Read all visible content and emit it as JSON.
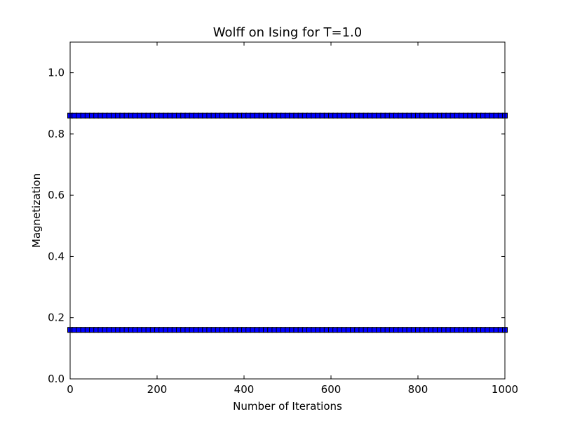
{
  "chart_data": {
    "type": "scatter",
    "title": "Wolff on Ising for T=1.0",
    "xlabel": "Number of Iterations",
    "ylabel": "Magnetization",
    "xlim": [
      0,
      1000
    ],
    "ylim": [
      0,
      1.1
    ],
    "xticks": [
      "0",
      "200",
      "400",
      "600",
      "800",
      "1000"
    ],
    "xtick_values": [
      0,
      200,
      400,
      600,
      800,
      1000
    ],
    "yticks": [
      "0.0",
      "0.2",
      "0.4",
      "0.6",
      "0.8",
      "1.0"
    ],
    "ytick_values": [
      0.0,
      0.2,
      0.4,
      0.6,
      0.8,
      1.0
    ],
    "grid": false,
    "marker": "square",
    "series": [
      {
        "x_start": 0,
        "x_end": 1000,
        "x_step": 10,
        "y": 0.86,
        "color": "#0000ff"
      },
      {
        "x_start": 0,
        "x_end": 1000,
        "x_step": 10,
        "y": 0.16,
        "color": "#0000ff"
      }
    ]
  }
}
